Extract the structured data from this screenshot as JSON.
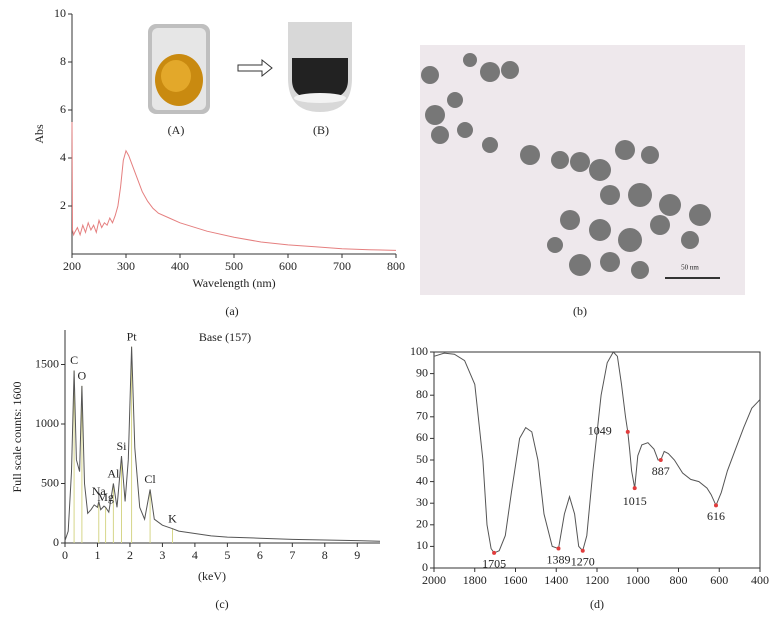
{
  "chart_data": [
    {
      "type": "line",
      "xlabel": "Wavelength (nm)",
      "ylabel": "Abs",
      "caption": "(a)",
      "annotations": [
        "(A)",
        "(B)"
      ],
      "color": "#e57f7f",
      "x": [
        200,
        201,
        203,
        205,
        210,
        215,
        220,
        225,
        230,
        235,
        240,
        245,
        250,
        255,
        260,
        265,
        270,
        275,
        280,
        285,
        290,
        295,
        300,
        305,
        310,
        320,
        330,
        340,
        350,
        355,
        360,
        380,
        400,
        450,
        500,
        550,
        600,
        650,
        700,
        750,
        800
      ],
      "values": [
        5.5,
        1.0,
        0.8,
        0.9,
        1.1,
        0.8,
        1.2,
        0.9,
        1.3,
        1.0,
        1.2,
        0.9,
        1.4,
        1.1,
        1.3,
        1.2,
        1.5,
        1.3,
        1.6,
        2.0,
        2.8,
        3.9,
        4.3,
        4.1,
        3.8,
        3.2,
        2.6,
        2.2,
        1.9,
        1.8,
        1.7,
        1.5,
        1.3,
        0.95,
        0.7,
        0.5,
        0.38,
        0.3,
        0.22,
        0.18,
        0.15
      ],
      "xlim": [
        200,
        800
      ],
      "xticks": [
        200,
        300,
        400,
        500,
        600,
        700,
        800
      ],
      "ylim": [
        0,
        10
      ],
      "yticks": [
        2,
        4,
        6,
        8,
        10
      ]
    },
    {
      "type": "image",
      "caption": "(b)",
      "scale_label": "50 nm"
    },
    {
      "type": "line",
      "title": "Base (157)",
      "xlabel": "(keV)",
      "ylabel": "Full scale counts: 1600",
      "caption": "(c)",
      "color": "#555555",
      "peak_color": "#d6d68a",
      "x": [
        0,
        0.1,
        0.2,
        0.28,
        0.35,
        0.45,
        0.52,
        0.6,
        0.7,
        0.8,
        0.9,
        1.0,
        1.04,
        1.1,
        1.2,
        1.25,
        1.35,
        1.49,
        1.6,
        1.74,
        1.85,
        1.95,
        2.05,
        2.15,
        2.3,
        2.45,
        2.62,
        2.75,
        3.0,
        3.31,
        3.5,
        4.0,
        4.5,
        5.0,
        6.0,
        7.0,
        8.0,
        9.0,
        9.7
      ],
      "values": [
        20,
        100,
        600,
        1450,
        700,
        600,
        1320,
        500,
        250,
        280,
        320,
        300,
        350,
        280,
        310,
        300,
        260,
        500,
        300,
        730,
        350,
        700,
        1650,
        800,
        300,
        200,
        450,
        200,
        150,
        120,
        100,
        80,
        60,
        50,
        40,
        30,
        25,
        20,
        15
      ],
      "xlim": [
        0,
        9.7
      ],
      "xticks": [
        0,
        1,
        2,
        3,
        4,
        5,
        6,
        7,
        8,
        9
      ],
      "ylim": [
        0,
        1790
      ],
      "yticks": [
        0,
        500,
        1000,
        1500
      ],
      "peaks": [
        {
          "label": "C",
          "x": 0.28,
          "value": 1450
        },
        {
          "label": "O",
          "x": 0.52,
          "value": 1320
        },
        {
          "label": "Na",
          "x": 1.04,
          "value": 350
        },
        {
          "label": "Mg",
          "x": 1.25,
          "value": 300
        },
        {
          "label": "Al",
          "x": 1.49,
          "value": 500
        },
        {
          "label": "Si",
          "x": 1.74,
          "value": 730
        },
        {
          "label": "Pt",
          "x": 2.05,
          "value": 1650
        },
        {
          "label": "Cl",
          "x": 2.62,
          "value": 450
        },
        {
          "label": "K",
          "x": 3.31,
          "value": 120
        }
      ]
    },
    {
      "type": "line",
      "caption": "(d)",
      "color": "#555555",
      "peak_color": "#e03c3c",
      "x": [
        2000,
        1950,
        1900,
        1850,
        1800,
        1760,
        1740,
        1720,
        1705,
        1680,
        1650,
        1620,
        1580,
        1550,
        1520,
        1490,
        1460,
        1420,
        1389,
        1360,
        1335,
        1310,
        1290,
        1270,
        1250,
        1220,
        1180,
        1150,
        1120,
        1100,
        1080,
        1060,
        1049,
        1040,
        1030,
        1015,
        1000,
        980,
        950,
        920,
        900,
        887,
        870,
        850,
        820,
        780,
        740,
        700,
        660,
        640,
        616,
        590,
        560,
        520,
        480,
        440,
        410,
        400
      ],
      "values": [
        98,
        99.5,
        99,
        96,
        85,
        50,
        20,
        9,
        7,
        8,
        15,
        35,
        60,
        65,
        63,
        50,
        25,
        10,
        9,
        25,
        33,
        25,
        10,
        8,
        15,
        45,
        80,
        95,
        100,
        98,
        85,
        70,
        63,
        55,
        45,
        37,
        52,
        57,
        58,
        55,
        50,
        50,
        54,
        53,
        50,
        44,
        41,
        40,
        37,
        34,
        29,
        35,
        45,
        55,
        65,
        74,
        77,
        78
      ],
      "xlim": [
        2000,
        400
      ],
      "xticks": [
        2000,
        1800,
        1600,
        1400,
        1200,
        1000,
        800,
        600,
        400
      ],
      "ylim": [
        0,
        100
      ],
      "yticks": [
        0,
        10,
        20,
        30,
        40,
        50,
        60,
        70,
        80,
        90,
        100
      ],
      "peaks": [
        {
          "x": 1705,
          "value": 7
        },
        {
          "x": 1389,
          "value": 9
        },
        {
          "x": 1270,
          "value": 8
        },
        {
          "x": 1049,
          "value": 63
        },
        {
          "x": 1015,
          "value": 37
        },
        {
          "x": 887,
          "value": 50
        },
        {
          "x": 616,
          "value": 29
        }
      ]
    }
  ]
}
